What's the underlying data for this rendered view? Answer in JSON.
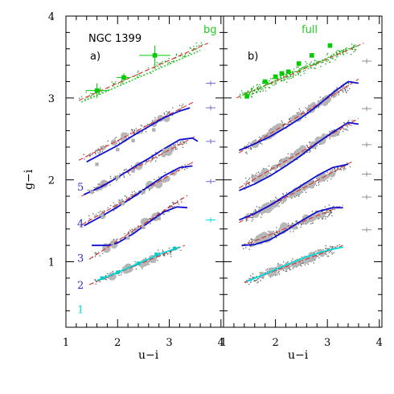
{
  "chart_data": [
    {
      "type": "scatter",
      "panel": "a)",
      "annotation_title": "NGC 1399",
      "corner_label": "bg",
      "xlabel": "u−i",
      "ylabel": "g−i",
      "xlim": [
        1,
        4.05
      ],
      "ylim": [
        0.2,
        4.0
      ],
      "xticks": [
        "1",
        "2",
        "3",
        "4"
      ],
      "yticks": [
        "1",
        "2",
        "3",
        "4"
      ],
      "strip_labels": [
        "1",
        "2",
        "3",
        "4",
        "5"
      ],
      "strip_label_colors": [
        "#00dcdc",
        "#3030c0",
        "#3030c0",
        "#3030c0",
        "#3030c0"
      ],
      "colors": {
        "bg": "#00dd00",
        "model": "#1010d0",
        "strip1": "#00dcdc",
        "fit": "#dd0000"
      },
      "series": [
        {
          "offset": 2.22,
          "color": "#00dd00",
          "fit_x": [
            1.25,
            3.75
          ],
          "fit_y": [
            0.75,
            1.45
          ],
          "model_x": [
            1.3,
            1.6,
            2.0,
            2.4,
            2.8,
            3.2,
            3.6
          ],
          "model_y": [
            0.73,
            0.81,
            0.92,
            1.03,
            1.14,
            1.25,
            1.36
          ],
          "binned": [
            {
              "x": 1.6,
              "y": 0.87,
              "xerr": 0.22,
              "yerr": 0.09
            },
            {
              "x": 2.12,
              "y": 1.03,
              "xerr": 0.14,
              "yerr": 0.05
            },
            {
              "x": 2.72,
              "y": 1.3,
              "xerr": 0.3,
              "yerr": 0.12
            }
          ]
        },
        {
          "offset": 1.58,
          "color": "#1010d0",
          "fit_x": [
            1.25,
            3.5
          ],
          "fit_y": [
            0.66,
            1.38
          ],
          "model_x": [
            1.4,
            1.7,
            2.0,
            2.3,
            2.6,
            2.9,
            3.2,
            3.4
          ],
          "model_y": [
            0.64,
            0.74,
            0.84,
            0.96,
            1.07,
            1.18,
            1.26,
            1.3
          ],
          "binned": [
            {
              "x": 1.6,
              "y": 0.61
            },
            {
              "x": 2.0,
              "y": 0.79
            },
            {
              "x": 2.3,
              "y": 0.9
            },
            {
              "x": 2.7,
              "y": 1.03
            }
          ]
        },
        {
          "offset": 1.15,
          "color": "#1010d0",
          "fit_x": [
            1.3,
            3.5
          ],
          "fit_y": [
            0.65,
            1.38
          ],
          "model_x": [
            1.35,
            1.7,
            2.0,
            2.3,
            2.6,
            2.9,
            3.2,
            3.45,
            3.55
          ],
          "model_y": [
            0.67,
            0.77,
            0.88,
            1.0,
            1.11,
            1.23,
            1.34,
            1.36,
            1.32
          ],
          "binned": [
            {
              "x": 1.5,
              "y": 0.7
            },
            {
              "x": 2.0,
              "y": 0.88
            },
            {
              "x": 2.3,
              "y": 0.96
            },
            {
              "x": 2.9,
              "y": 1.21
            }
          ]
        },
        {
          "offset": 0.73,
          "color": "#1010d0",
          "fit_x": [
            1.3,
            3.5
          ],
          "fit_y": [
            0.72,
            1.5
          ],
          "model_x": [
            1.35,
            1.7,
            2.0,
            2.3,
            2.6,
            2.9,
            3.2,
            3.45
          ],
          "model_y": [
            0.71,
            0.83,
            0.94,
            1.06,
            1.19,
            1.32,
            1.42,
            1.44
          ],
          "binned": [
            {
              "x": 1.7,
              "y": 0.84
            },
            {
              "x": 2.1,
              "y": 0.98
            },
            {
              "x": 2.5,
              "y": 1.12
            },
            {
              "x": 2.9,
              "y": 1.26
            }
          ]
        },
        {
          "offset": 0.39,
          "color": "#1010d0",
          "fit_x": [
            1.45,
            3.35
          ],
          "fit_y": [
            0.64,
            1.42
          ],
          "model_x": [
            1.5,
            1.8,
            2.0,
            2.3,
            2.6,
            2.9,
            3.15,
            3.35
          ],
          "model_y": [
            0.81,
            0.81,
            0.84,
            0.95,
            1.09,
            1.22,
            1.28,
            1.27
          ],
          "binned": [
            {
              "x": 1.9,
              "y": 0.84
            },
            {
              "x": 2.2,
              "y": 0.9
            },
            {
              "x": 2.5,
              "y": 1.03
            },
            {
              "x": 2.8,
              "y": 1.14
            }
          ]
        },
        {
          "offset": 0.0,
          "color": "#00dcdc",
          "fit_x": [
            1.45,
            3.3
          ],
          "fit_y": [
            0.72,
            1.2
          ],
          "model_x": [
            1.6,
            2.0,
            2.4,
            2.8,
            3.2
          ],
          "model_y": [
            0.77,
            0.87,
            0.98,
            1.09,
            1.18
          ],
          "binned": [
            {
              "x": 1.7,
              "y": 0.8
            },
            {
              "x": 2.0,
              "y": 0.87
            },
            {
              "x": 2.4,
              "y": 0.98
            },
            {
              "x": 2.75,
              "y": 1.09
            },
            {
              "x": 3.1,
              "y": 1.16
            }
          ]
        }
      ],
      "side_errorbars": [
        {
          "y": 3.18,
          "color": "#7070d0"
        },
        {
          "y": 2.88,
          "color": "#7070d0"
        },
        {
          "y": 2.47,
          "color": "#7070d0"
        },
        {
          "y": 1.98,
          "color": "#7070d0"
        },
        {
          "y": 1.51,
          "color": "#00dcdc"
        }
      ]
    },
    {
      "type": "scatter",
      "panel": "b)",
      "corner_label": "full",
      "xlabel": "u−i",
      "xlim": [
        1,
        4.05
      ],
      "ylim": [
        0.2,
        4.0
      ],
      "xticks": [
        "1",
        "2",
        "3",
        "4"
      ],
      "series": [
        {
          "offset": 2.22,
          "color": "#00dd00",
          "fit_x": [
            1.25,
            3.7
          ],
          "fit_y": [
            0.78,
            1.45
          ],
          "model_x": [
            1.3,
            1.7,
            2.1,
            2.5,
            2.9,
            3.3,
            3.6
          ],
          "model_y": [
            0.8,
            0.9,
            1.03,
            1.13,
            1.24,
            1.36,
            1.42
          ],
          "binned": [
            {
              "x": 1.45,
              "y": 0.8
            },
            {
              "x": 1.8,
              "y": 0.98
            },
            {
              "x": 2.0,
              "y": 1.04
            },
            {
              "x": 2.12,
              "y": 1.08
            },
            {
              "x": 2.25,
              "y": 1.1
            },
            {
              "x": 2.45,
              "y": 1.2
            },
            {
              "x": 2.7,
              "y": 1.3
            },
            {
              "x": 3.05,
              "y": 1.42
            }
          ]
        },
        {
          "offset": 1.58,
          "color": "#1010d0",
          "fit_x": [
            1.3,
            3.6
          ],
          "fit_y": [
            0.75,
            1.65
          ],
          "model_x": [
            1.3,
            1.6,
            1.9,
            2.2,
            2.5,
            2.8,
            3.1,
            3.4,
            3.6
          ],
          "model_y": [
            0.78,
            0.86,
            0.95,
            1.06,
            1.18,
            1.32,
            1.48,
            1.62,
            1.6
          ]
        },
        {
          "offset": 1.15,
          "color": "#1010d0",
          "fit_x": [
            1.3,
            3.6
          ],
          "fit_y": [
            0.75,
            1.6
          ],
          "model_x": [
            1.3,
            1.6,
            1.9,
            2.2,
            2.5,
            2.8,
            3.1,
            3.4,
            3.6
          ],
          "model_y": [
            0.72,
            0.8,
            0.9,
            1.02,
            1.15,
            1.3,
            1.43,
            1.55,
            1.53
          ]
        },
        {
          "offset": 0.73,
          "color": "#1010d0",
          "fit_x": [
            1.3,
            3.5
          ],
          "fit_y": [
            0.75,
            1.5
          ],
          "model_x": [
            1.3,
            1.6,
            1.9,
            2.2,
            2.5,
            2.8,
            3.1,
            3.4
          ],
          "model_y": [
            0.78,
            0.86,
            0.96,
            1.08,
            1.2,
            1.32,
            1.42,
            1.46
          ]
        },
        {
          "offset": 0.39,
          "color": "#1010d0",
          "fit_x": [
            1.35,
            3.3
          ],
          "fit_y": [
            0.8,
            1.3
          ],
          "model_x": [
            1.35,
            1.6,
            1.9,
            2.2,
            2.5,
            2.8,
            3.1,
            3.3
          ],
          "model_y": [
            0.81,
            0.82,
            0.88,
            0.99,
            1.11,
            1.22,
            1.27,
            1.27
          ]
        },
        {
          "offset": 0.0,
          "color": "#00dcdc",
          "fit_x": [
            1.4,
            3.3
          ],
          "fit_y": [
            0.75,
            1.2
          ],
          "model_x": [
            1.45,
            1.8,
            2.2,
            2.6,
            3.0,
            3.3
          ],
          "model_y": [
            0.76,
            0.85,
            0.96,
            1.06,
            1.14,
            1.18
          ]
        }
      ],
      "side_errorbars": [
        {
          "y": 3.45,
          "color": "#909090"
        },
        {
          "y": 2.87,
          "color": "#909090"
        },
        {
          "y": 2.43,
          "color": "#909090"
        },
        {
          "y": 2.07,
          "color": "#909090"
        },
        {
          "y": 1.79,
          "color": "#909090"
        },
        {
          "y": 1.39,
          "color": "#909090"
        }
      ]
    }
  ]
}
